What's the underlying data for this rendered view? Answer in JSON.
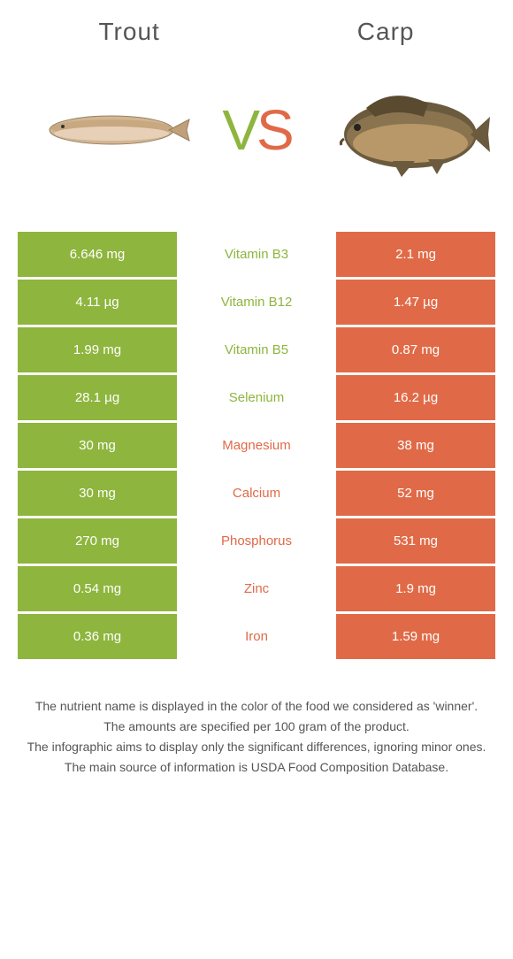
{
  "header": {
    "left_title": "Trout",
    "right_title": "Carp"
  },
  "vs": {
    "v": "V",
    "s": "S"
  },
  "colors": {
    "left": "#8eb53e",
    "right": "#e06a47",
    "background": "#ffffff",
    "text_dark": "#555555"
  },
  "rows": [
    {
      "left": "6.646 mg",
      "mid": "Vitamin B3",
      "right": "2.1 mg",
      "winner": "left"
    },
    {
      "left": "4.11 µg",
      "mid": "Vitamin B12",
      "right": "1.47 µg",
      "winner": "left"
    },
    {
      "left": "1.99 mg",
      "mid": "Vitamin B5",
      "right": "0.87 mg",
      "winner": "left"
    },
    {
      "left": "28.1 µg",
      "mid": "Selenium",
      "right": "16.2 µg",
      "winner": "left"
    },
    {
      "left": "30 mg",
      "mid": "Magnesium",
      "right": "38 mg",
      "winner": "right"
    },
    {
      "left": "30 mg",
      "mid": "Calcium",
      "right": "52 mg",
      "winner": "right"
    },
    {
      "left": "270 mg",
      "mid": "Phosphorus",
      "right": "531 mg",
      "winner": "right"
    },
    {
      "left": "0.54 mg",
      "mid": "Zinc",
      "right": "1.9 mg",
      "winner": "right"
    },
    {
      "left": "0.36 mg",
      "mid": "Iron",
      "right": "1.59 mg",
      "winner": "right"
    }
  ],
  "footer": {
    "line1": "The nutrient name is displayed in the color of the food we considered as 'winner'.",
    "line2": "The amounts are specified per 100 gram of the product.",
    "line3": "The infographic aims to display only the significant differences, ignoring minor ones.",
    "line4": "The main source of information is USDA Food Composition Database."
  }
}
